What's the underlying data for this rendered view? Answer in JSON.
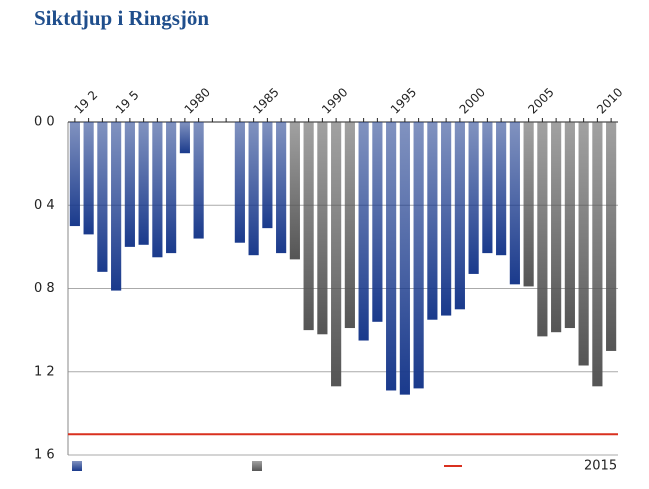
{
  "chart_data": {
    "type": "bar",
    "title": "Siktdjup i Ringsjön",
    "categories": [
      "19 2",
      null,
      null,
      "19 5",
      null,
      null,
      null,
      null,
      "1980",
      null,
      null,
      null,
      null,
      "1985",
      null,
      null,
      null,
      null,
      "1990",
      null,
      null,
      null,
      null,
      "1995",
      null,
      null,
      null,
      null,
      "2000",
      null,
      null,
      null,
      null,
      "2005",
      null,
      null,
      null,
      null,
      "2010",
      null
    ],
    "series": [
      {
        "color": "#1a3a8c",
        "values": [
          0.5,
          0.54,
          0.72,
          0.81,
          0.6,
          0.59,
          0.65,
          0.63,
          0.15,
          0.56,
          null,
          null,
          0.58,
          0.64,
          0.51,
          0.63,
          null,
          null,
          null,
          null,
          null,
          1.05,
          0.96,
          1.29,
          1.31,
          1.28,
          0.95,
          0.93,
          0.9,
          0.73,
          0.63,
          0.64,
          0.78,
          null,
          null,
          null,
          null,
          null,
          null,
          null
        ]
      },
      {
        "color": "#555555",
        "values": [
          null,
          null,
          null,
          null,
          null,
          null,
          null,
          null,
          null,
          null,
          null,
          null,
          null,
          null,
          null,
          null,
          0.66,
          1.0,
          1.02,
          1.27,
          0.99,
          null,
          null,
          null,
          null,
          null,
          null,
          null,
          null,
          null,
          null,
          null,
          null,
          0.79,
          1.03,
          1.01,
          0.99,
          1.17,
          1.27,
          1.1
        ]
      }
    ],
    "reference": {
      "name": "2015",
      "value": 1.5,
      "color": "#d9301f"
    },
    "ylim": [
      0,
      1.6
    ],
    "inverted": true,
    "yticks": [
      {
        "value": 0,
        "label": "0 0"
      },
      {
        "value": 0.4,
        "label": "0 4"
      },
      {
        "value": 0.8,
        "label": "0 8"
      },
      {
        "value": 1.2,
        "label": "1 2"
      },
      {
        "value": 1.6,
        "label": "1 6"
      }
    ],
    "grid": true
  }
}
